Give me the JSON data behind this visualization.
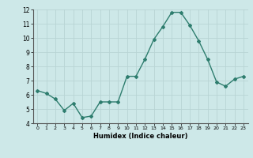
{
  "x": [
    0,
    1,
    2,
    3,
    4,
    5,
    6,
    7,
    8,
    9,
    10,
    11,
    12,
    13,
    14,
    15,
    16,
    17,
    18,
    19,
    20,
    21,
    22,
    23
  ],
  "y": [
    6.3,
    6.1,
    5.7,
    4.9,
    5.4,
    4.4,
    4.5,
    5.5,
    5.5,
    5.5,
    7.3,
    7.3,
    8.5,
    9.9,
    10.8,
    11.8,
    11.8,
    10.9,
    9.8,
    8.5,
    6.9,
    6.6,
    7.1,
    7.3
  ],
  "xlabel": "Humidex (Indice chaleur)",
  "ylim": [
    4,
    12
  ],
  "xlim": [
    -0.5,
    23.5
  ],
  "yticks": [
    4,
    5,
    6,
    7,
    8,
    9,
    10,
    11,
    12
  ],
  "xticks": [
    0,
    1,
    2,
    3,
    4,
    5,
    6,
    7,
    8,
    9,
    10,
    11,
    12,
    13,
    14,
    15,
    16,
    17,
    18,
    19,
    20,
    21,
    22,
    23
  ],
  "line_color": "#2e7d6e",
  "bg_color": "#cde8e8",
  "grid_color": "#b8d4d4",
  "marker": "D",
  "marker_size": 2.0,
  "line_width": 1.0
}
